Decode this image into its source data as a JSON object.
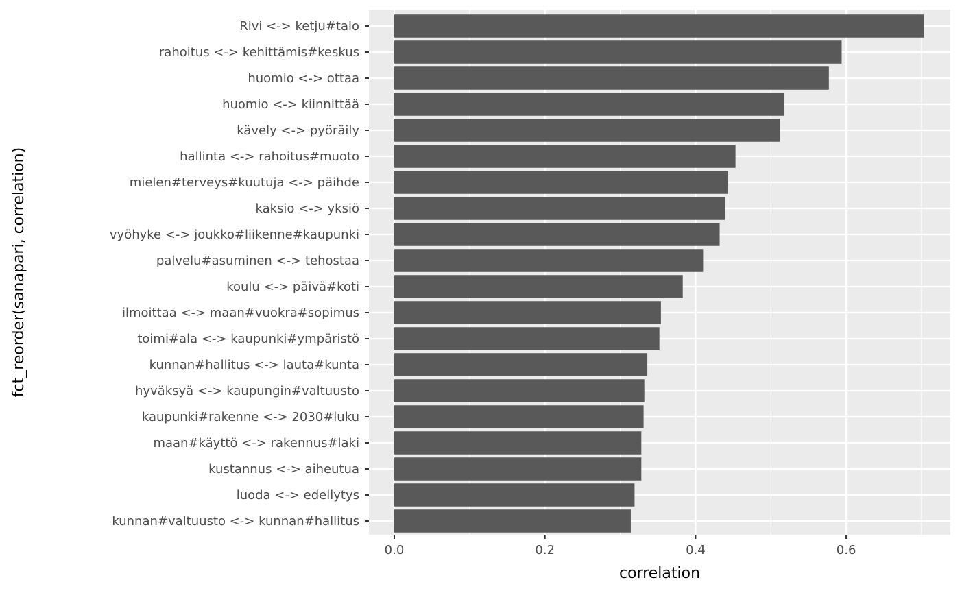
{
  "chart_data": {
    "type": "bar",
    "orientation": "horizontal",
    "xlabel": "correlation",
    "ylabel": "fct_reorder(sanapari, correlation)",
    "xlim": [
      0,
      0.72
    ],
    "x_ticks": [
      "0.0",
      "0.2",
      "0.4",
      "0.6"
    ],
    "x_tick_values": [
      0,
      0.2,
      0.4,
      0.6
    ],
    "grid": true,
    "bar_color": "#595959",
    "panel_color": "#ebebeb",
    "categories": [
      "Rivi <-> ketju#talo",
      "rahoitus <-> kehittämis#keskus",
      "huomio <-> ottaa",
      "huomio <-> kiinnittää",
      "kävely <-> pyöräily",
      "hallinta <-> rahoitus#muoto",
      "mielen#terveys#kuutuja <-> päihde",
      "kaksio <-> yksiö",
      "vyöhyke <-> joukko#liikenne#kaupunki",
      "palvelu#asuminen <-> tehostaa",
      "koulu <-> päivä#koti",
      "ilmoittaa <-> maan#vuokra#sopimus",
      "toimi#ala <-> kaupunki#ympäristö",
      "kunnan#hallitus <-> lauta#kunta",
      "hyväksyä <-> kaupungin#valtuusto",
      "kaupunki#rakenne <-> 2030#luku",
      "maan#käyttö <-> rakennus#laki",
      "kustannus <-> aiheutua",
      "luoda <-> edellytys",
      "kunnan#valtuusto <-> kunnan#hallitus"
    ],
    "values": [
      0.703,
      0.594,
      0.577,
      0.518,
      0.512,
      0.453,
      0.443,
      0.439,
      0.432,
      0.41,
      0.383,
      0.354,
      0.352,
      0.336,
      0.332,
      0.331,
      0.328,
      0.328,
      0.319,
      0.314
    ]
  }
}
